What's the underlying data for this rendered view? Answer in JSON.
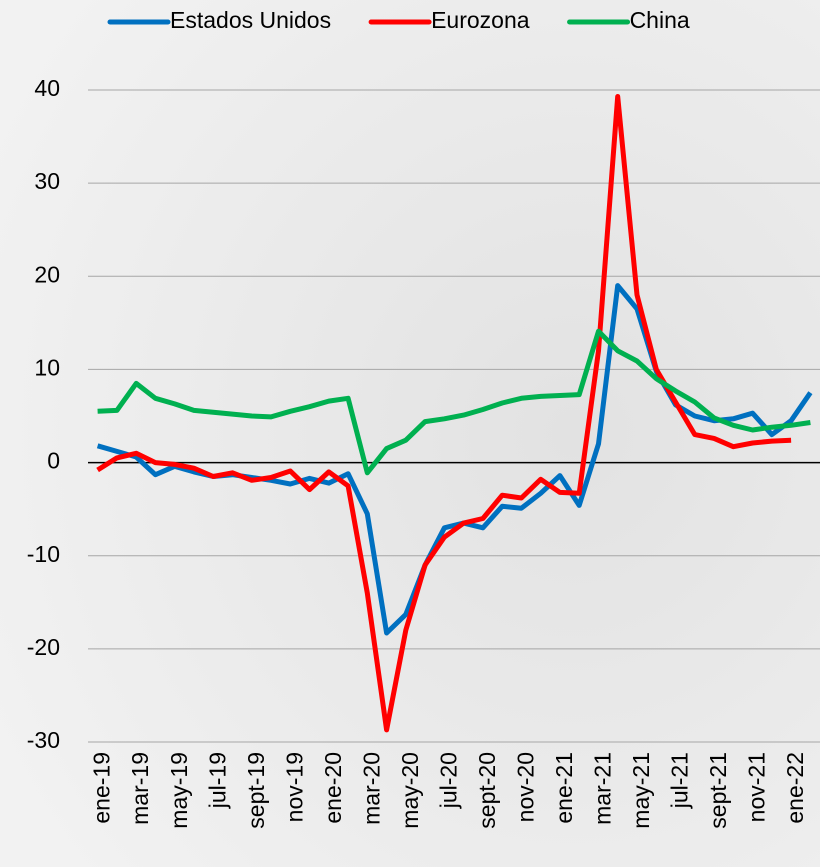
{
  "chart_data": {
    "type": "line",
    "categories": [
      "ene-19",
      null,
      "mar-19",
      null,
      "may-19",
      null,
      "jul-19",
      null,
      "sept-19",
      null,
      "nov-19",
      null,
      "ene-20",
      null,
      "mar-20",
      null,
      "may-20",
      null,
      "jul-20",
      null,
      "sept-20",
      null,
      "nov-20",
      null,
      "ene-21",
      null,
      "mar-21",
      null,
      "may-21",
      null,
      "jul-21",
      null,
      "sept-21",
      null,
      "nov-21",
      null,
      "ene-22",
      null
    ],
    "series": [
      {
        "name": "Estados Unidos",
        "color": "#0070c0",
        "values": [
          1.8,
          1.2,
          0.6,
          -1.3,
          -0.4,
          -1.0,
          -1.5,
          -1.3,
          -1.6,
          -1.9,
          -2.3,
          -1.7,
          -2.2,
          -1.2,
          -5.5,
          -18.3,
          -16.3,
          -11,
          -7,
          -6.5,
          -7,
          -4.7,
          -4.9,
          -3.3,
          -1.4,
          -4.6,
          2.0,
          19.0,
          16.5,
          9.8,
          6.2,
          5.0,
          4.5,
          4.7,
          5.3,
          3.0,
          4.5,
          7.5
        ]
      },
      {
        "name": "Eurozona",
        "color": "#ff0000",
        "values": [
          -0.8,
          0.5,
          1.0,
          0.0,
          -0.2,
          -0.6,
          -1.5,
          -1.1,
          -1.9,
          -1.6,
          -0.9,
          -2.9,
          -1.0,
          -2.5,
          -14,
          -28.7,
          -18,
          -11,
          -8,
          -6.5,
          -6,
          -3.5,
          -3.8,
          -1.8,
          -3.2,
          -3.3,
          12,
          39.3,
          18,
          10,
          6.5,
          3.0,
          2.6,
          1.7,
          2.1,
          2.3,
          2.4,
          null
        ]
      },
      {
        "name": "China",
        "color": "#00b050",
        "values": [
          5.5,
          5.6,
          8.5,
          6.9,
          6.3,
          5.6,
          5.4,
          5.2,
          5.0,
          4.9,
          5.5,
          6.0,
          6.6,
          6.9,
          -1.1,
          1.5,
          2.4,
          4.4,
          4.7,
          5.1,
          5.7,
          6.4,
          6.9,
          7.1,
          7.2,
          7.3,
          14.1,
          12.0,
          10.9,
          9.0,
          7.7,
          6.5,
          4.8,
          4.0,
          3.5,
          3.8,
          4.0,
          4.3
        ]
      }
    ],
    "ylim": [
      -30,
      40
    ],
    "yticks": [
      -30,
      -20,
      -10,
      0,
      10,
      20,
      30,
      40
    ],
    "grid": true,
    "legend": "top"
  }
}
